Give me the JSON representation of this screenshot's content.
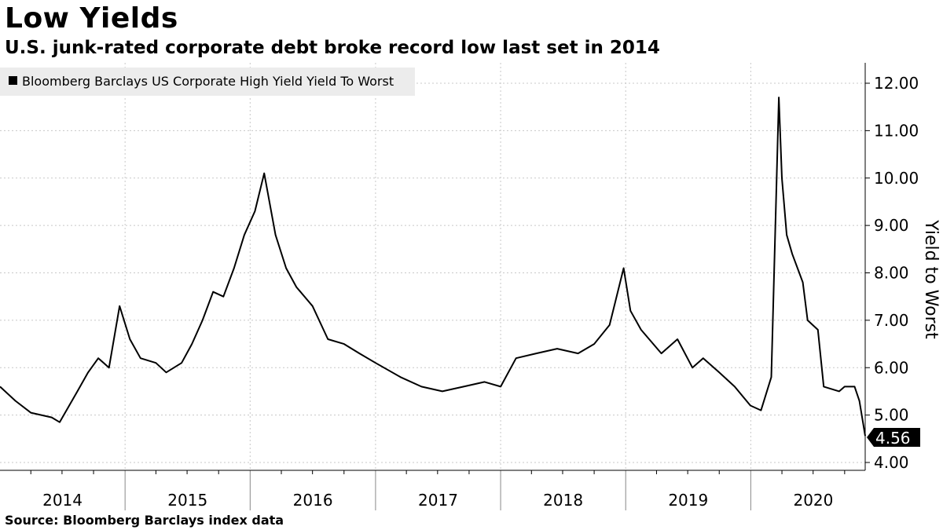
{
  "title": "Low Yields",
  "subtitle": "U.S. junk-rated corporate debt broke record low last set in 2014",
  "source": "Source: Bloomberg Barclays index data",
  "chart_data": {
    "type": "line",
    "title": "Low Yields",
    "subtitle": "U.S. junk-rated corporate debt broke record low last set in 2014",
    "ylabel": "Yield to Worst",
    "xlabel": "",
    "y_axis_side": "right",
    "ylim": [
      3.8,
      12.4
    ],
    "yticks": [
      "4.00",
      "5.00",
      "6.00",
      "7.00",
      "8.00",
      "9.00",
      "10.00",
      "11.00",
      "12.00"
    ],
    "x_tick_labels": [
      "2014",
      "2015",
      "2016",
      "2017",
      "2018",
      "2019",
      "2020"
    ],
    "xlim": [
      "2014-01-01",
      "2020-11-30"
    ],
    "grid": true,
    "legend_position": "top-left",
    "last_value_label": "4.56",
    "series": [
      {
        "name": "Bloomberg Barclays US Corporate High Yield Yield To Worst",
        "color": "#000000",
        "x": [
          "2014-01-01",
          "2014-02-15",
          "2014-04-01",
          "2014-06-01",
          "2014-06-24",
          "2014-08-15",
          "2014-09-15",
          "2014-10-15",
          "2014-11-15",
          "2014-12-16",
          "2015-01-15",
          "2015-02-15",
          "2015-04-01",
          "2015-05-01",
          "2015-06-15",
          "2015-07-15",
          "2015-08-15",
          "2015-09-15",
          "2015-10-15",
          "2015-11-15",
          "2015-12-15",
          "2016-01-15",
          "2016-02-11",
          "2016-03-15",
          "2016-04-15",
          "2016-05-15",
          "2016-07-01",
          "2016-08-15",
          "2016-10-01",
          "2016-11-15",
          "2017-01-01",
          "2017-03-15",
          "2017-05-15",
          "2017-07-15",
          "2017-09-15",
          "2017-11-15",
          "2018-01-01",
          "2018-02-15",
          "2018-04-15",
          "2018-06-15",
          "2018-08-15",
          "2018-10-01",
          "2018-11-15",
          "2018-12-26",
          "2019-01-15",
          "2019-02-15",
          "2019-04-15",
          "2019-06-01",
          "2019-07-15",
          "2019-08-15",
          "2019-10-01",
          "2019-11-15",
          "2019-12-31",
          "2020-01-31",
          "2020-03-01",
          "2020-03-23",
          "2020-04-01",
          "2020-04-15",
          "2020-05-01",
          "2020-06-01",
          "2020-06-15",
          "2020-07-15",
          "2020-08-01",
          "2020-09-15",
          "2020-10-01",
          "2020-10-30",
          "2020-11-13",
          "2020-11-30"
        ],
        "values": [
          5.6,
          5.3,
          5.05,
          4.95,
          4.85,
          5.5,
          5.9,
          6.2,
          6.0,
          7.3,
          6.6,
          6.2,
          6.1,
          5.9,
          6.1,
          6.5,
          7.0,
          7.6,
          7.5,
          8.1,
          8.8,
          9.3,
          10.1,
          8.8,
          8.1,
          7.7,
          7.3,
          6.6,
          6.5,
          6.3,
          6.1,
          5.8,
          5.6,
          5.5,
          5.6,
          5.7,
          5.6,
          6.2,
          6.3,
          6.4,
          6.3,
          6.5,
          6.9,
          8.1,
          7.2,
          6.8,
          6.3,
          6.6,
          6.0,
          6.2,
          5.9,
          5.6,
          5.2,
          5.1,
          5.8,
          11.7,
          10.0,
          8.8,
          8.4,
          7.8,
          7.0,
          6.8,
          5.6,
          5.5,
          5.6,
          5.6,
          5.3,
          4.56
        ]
      }
    ]
  }
}
